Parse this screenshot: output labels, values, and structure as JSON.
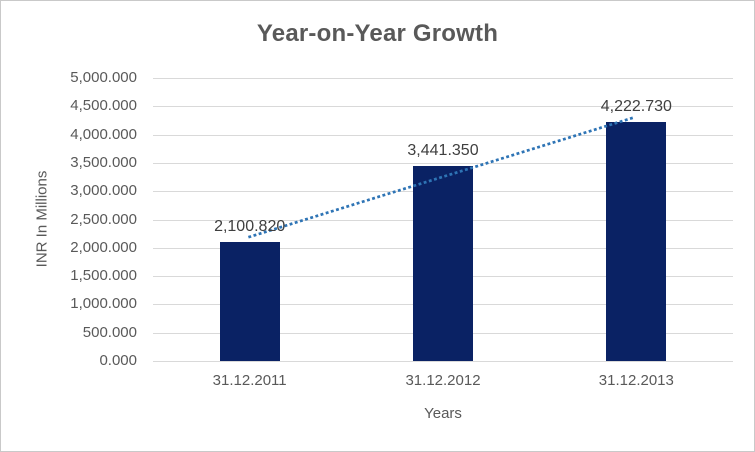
{
  "window": {
    "background": "#FFFFFF",
    "border_color": "#C9C9C9"
  },
  "chart_data": {
    "type": "bar",
    "title": "Year-on-Year Growth",
    "xlabel": "Years",
    "ylabel": "INR In Millions",
    "categories": [
      "31.12.2011",
      "31.12.2012",
      "31.12.2013"
    ],
    "values": [
      2100.82,
      3441.35,
      4222.73
    ],
    "data_labels": [
      "2,100.820",
      "3,441.350",
      "4,222.730"
    ],
    "ylim": [
      0,
      5000
    ],
    "y_tick_step": 500,
    "y_tick_labels": [
      "5,000.000",
      "4,500.000",
      "4,000.000",
      "3,500.000",
      "3,000.000",
      "2,500.000",
      "2,000.000",
      "1,500.000",
      "1,000.000",
      "500.000",
      "0.000"
    ],
    "grid": true,
    "legend": false,
    "trendline": {
      "type": "linear",
      "style": "dotted"
    }
  },
  "style": {
    "bar_color": "#0A2264",
    "trendline_color": "#2E74B5",
    "gridline_color": "#D9D9D9",
    "axis_line_color": "#D9D9D9",
    "title_color": "#595959",
    "tick_label_color": "#595959",
    "data_label_color": "#3F3F3F",
    "axis_title_color": "#595959"
  }
}
